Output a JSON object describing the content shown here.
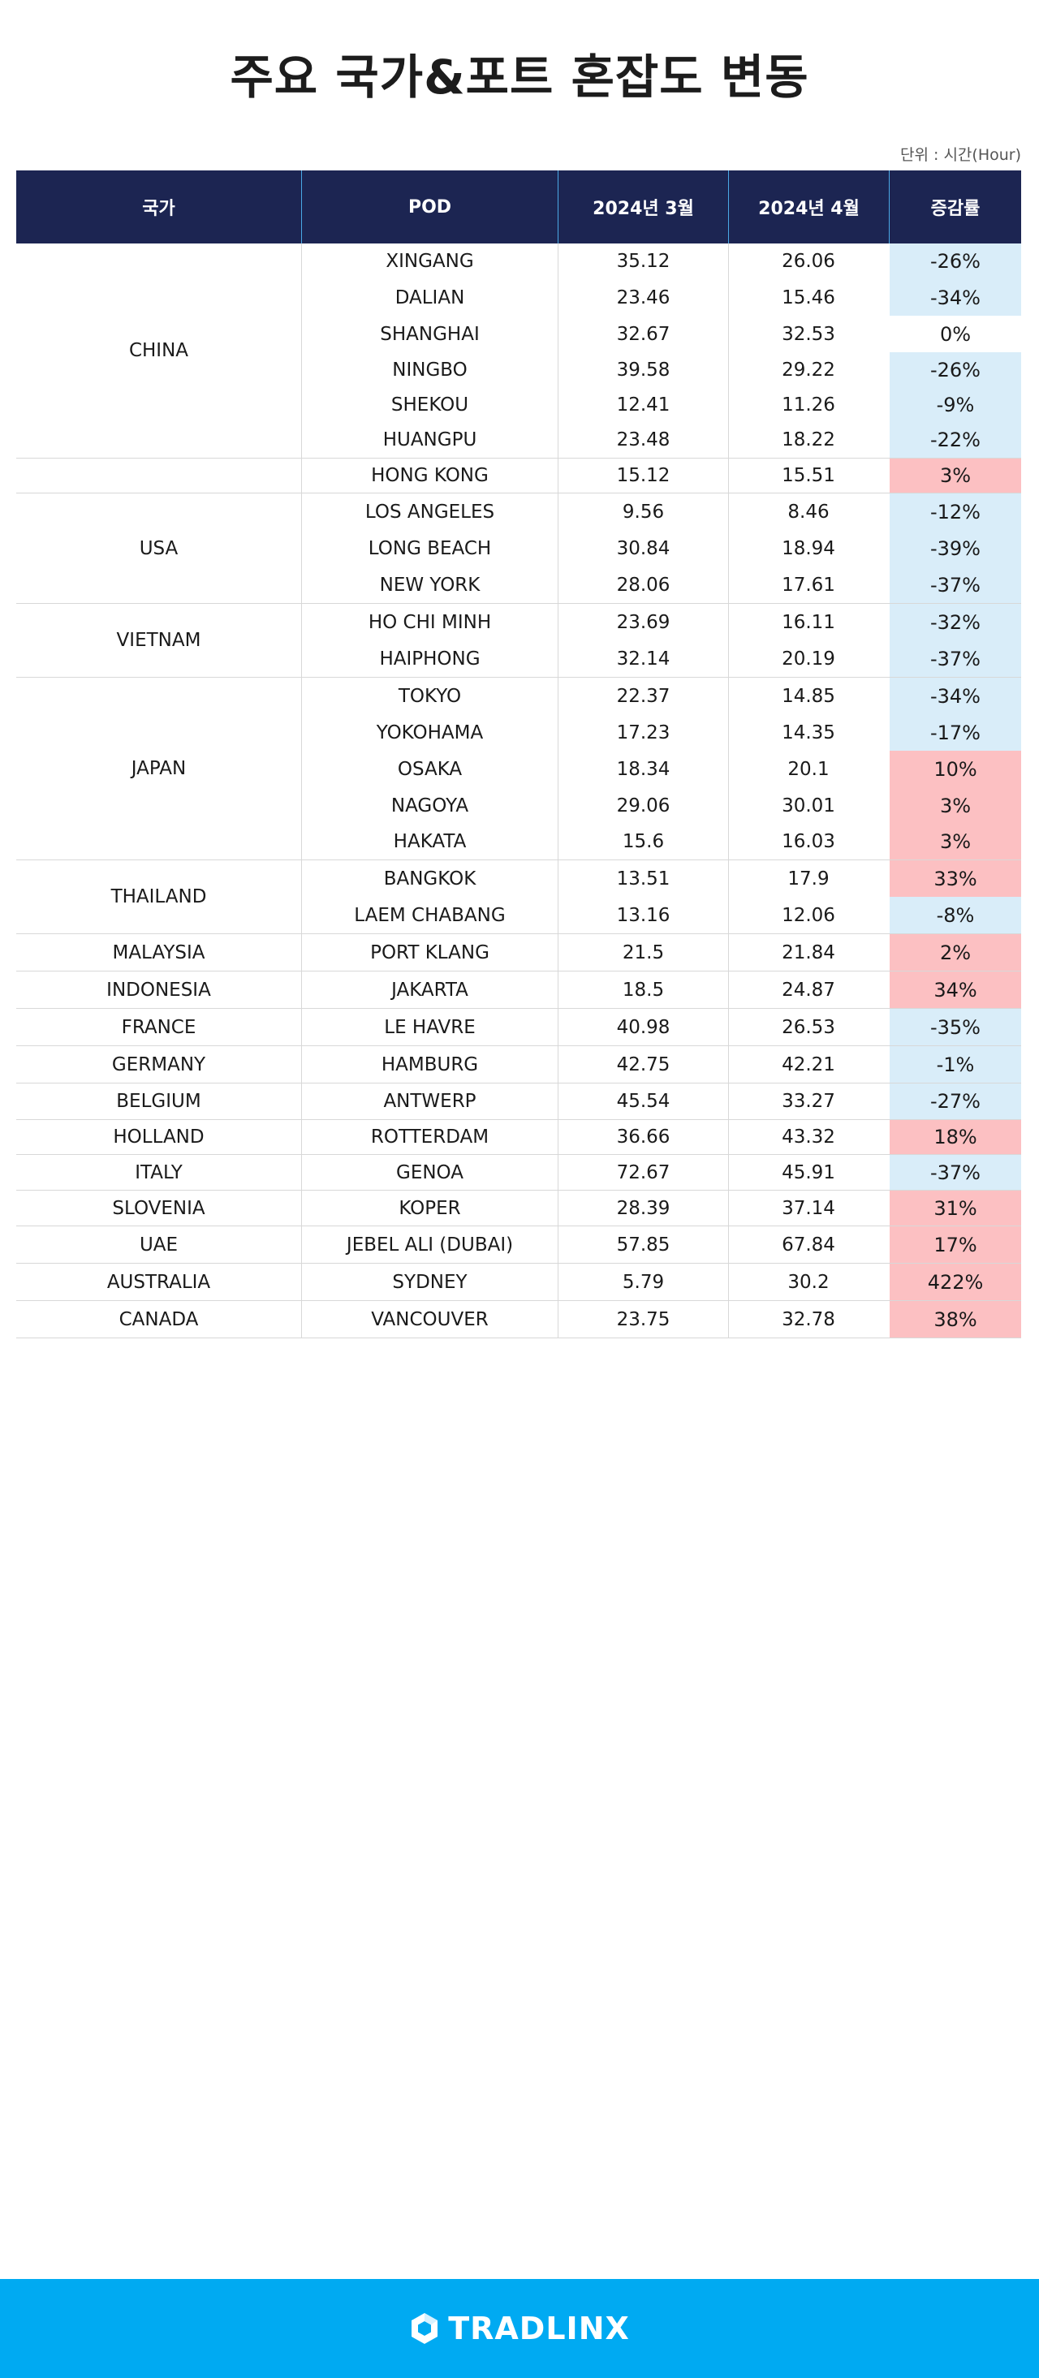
{
  "title": "주요 국가&포트 혼잡도 변동",
  "unit": "단위 : 시간(Hour)",
  "headers": {
    "country": "국가",
    "pod": "POD",
    "mar": "2024년 3월",
    "apr": "2024년 4월",
    "rate": "증감률"
  },
  "groups": [
    {
      "country": "CHINA",
      "rows": [
        {
          "pod": "XINGANG",
          "mar": "35.12",
          "apr": "26.06",
          "rate": "-26%"
        },
        {
          "pod": "DALIAN",
          "mar": "23.46",
          "apr": "15.46",
          "rate": "-34%"
        },
        {
          "pod": "SHANGHAI",
          "mar": "32.67",
          "apr": "32.53",
          "rate": "0%"
        },
        {
          "pod": "NINGBO",
          "mar": "39.58",
          "apr": "29.22",
          "rate": "-26%"
        },
        {
          "pod": "SHEKOU",
          "mar": "12.41",
          "apr": "11.26",
          "rate": "-9%"
        },
        {
          "pod": "HUANGPU",
          "mar": "23.48",
          "apr": "18.22",
          "rate": "-22%"
        }
      ]
    },
    {
      "country": "",
      "rows": [
        {
          "pod": "HONG KONG",
          "mar": "15.12",
          "apr": "15.51",
          "rate": "3%"
        }
      ]
    },
    {
      "country": "USA",
      "rows": [
        {
          "pod": "LOS ANGELES",
          "mar": "9.56",
          "apr": "8.46",
          "rate": "-12%"
        },
        {
          "pod": "LONG BEACH",
          "mar": "30.84",
          "apr": "18.94",
          "rate": "-39%"
        },
        {
          "pod": "NEW YORK",
          "mar": "28.06",
          "apr": "17.61",
          "rate": "-37%"
        }
      ]
    },
    {
      "country": "VIETNAM",
      "rows": [
        {
          "pod": "HO CHI MINH",
          "mar": "23.69",
          "apr": "16.11",
          "rate": "-32%"
        },
        {
          "pod": "HAIPHONG",
          "mar": "32.14",
          "apr": "20.19",
          "rate": "-37%"
        }
      ]
    },
    {
      "country": "JAPAN",
      "rows": [
        {
          "pod": "TOKYO",
          "mar": "22.37",
          "apr": "14.85",
          "rate": "-34%"
        },
        {
          "pod": "YOKOHAMA",
          "mar": "17.23",
          "apr": "14.35",
          "rate": "-17%"
        },
        {
          "pod": "OSAKA",
          "mar": "18.34",
          "apr": "20.1",
          "rate": "10%"
        },
        {
          "pod": "NAGOYA",
          "mar": "29.06",
          "apr": "30.01",
          "rate": "3%"
        },
        {
          "pod": "HAKATA",
          "mar": "15.6",
          "apr": "16.03",
          "rate": "3%"
        }
      ]
    },
    {
      "country": "THAILAND",
      "rows": [
        {
          "pod": "BANGKOK",
          "mar": "13.51",
          "apr": "17.9",
          "rate": "33%"
        },
        {
          "pod": "LAEM CHABANG",
          "mar": "13.16",
          "apr": "12.06",
          "rate": "-8%"
        }
      ]
    },
    {
      "country": "MALAYSIA",
      "rows": [
        {
          "pod": "PORT KLANG",
          "mar": "21.5",
          "apr": "21.84",
          "rate": "2%"
        }
      ]
    },
    {
      "country": "INDONESIA",
      "rows": [
        {
          "pod": "JAKARTA",
          "mar": "18.5",
          "apr": "24.87",
          "rate": "34%"
        }
      ]
    },
    {
      "country": "FRANCE",
      "rows": [
        {
          "pod": "LE HAVRE",
          "mar": "40.98",
          "apr": "26.53",
          "rate": "-35%"
        }
      ]
    },
    {
      "country": "GERMANY",
      "rows": [
        {
          "pod": "HAMBURG",
          "mar": "42.75",
          "apr": "42.21",
          "rate": "-1%"
        }
      ]
    },
    {
      "country": "BELGIUM",
      "rows": [
        {
          "pod": "ANTWERP",
          "mar": "45.54",
          "apr": "33.27",
          "rate": "-27%"
        }
      ]
    },
    {
      "country": "HOLLAND",
      "rows": [
        {
          "pod": "ROTTERDAM",
          "mar": "36.66",
          "apr": "43.32",
          "rate": "18%"
        }
      ]
    },
    {
      "country": "ITALY",
      "rows": [
        {
          "pod": "GENOA",
          "mar": "72.67",
          "apr": "45.91",
          "rate": "-37%"
        }
      ]
    },
    {
      "country": "SLOVENIA",
      "rows": [
        {
          "pod": "KOPER",
          "mar": "28.39",
          "apr": "37.14",
          "rate": "31%"
        }
      ]
    },
    {
      "country": "UAE",
      "rows": [
        {
          "pod": "JEBEL ALI (DUBAI)",
          "mar": "57.85",
          "apr": "67.84",
          "rate": "17%"
        }
      ]
    },
    {
      "country": "AUSTRALIA",
      "rows": [
        {
          "pod": "SYDNEY",
          "mar": "5.79",
          "apr": "30.2",
          "rate": "422%"
        }
      ]
    },
    {
      "country": "CANADA",
      "rows": [
        {
          "pod": "VANCOUVER",
          "mar": "23.75",
          "apr": "32.78",
          "rate": "38%"
        }
      ]
    }
  ],
  "colors": {
    "header_bg": "#1c2552",
    "decrease_bg": "#d9edf9",
    "increase_bg": "#fcc0c2",
    "footer_bg": "#00aaf2"
  },
  "footer": {
    "logo_icon": "tradlinx-hexagon-icon",
    "logo_text": "TRADLINX"
  }
}
